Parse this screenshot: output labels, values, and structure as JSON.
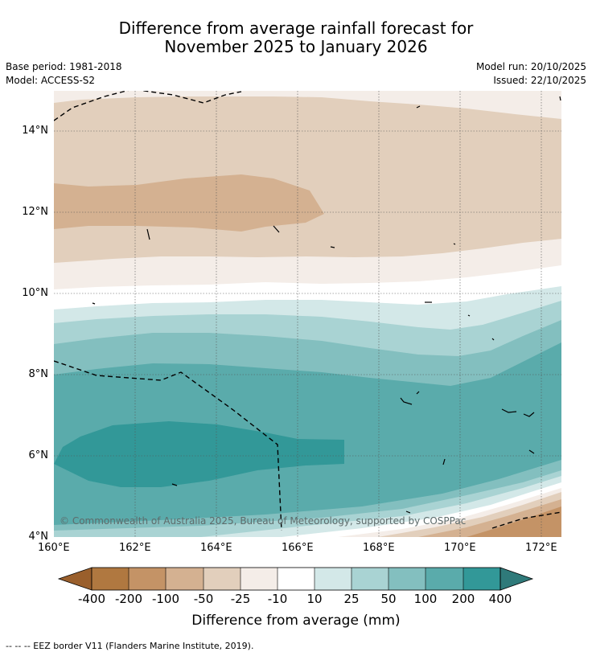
{
  "title": {
    "line1": "Difference from average rainfall forecast for",
    "line2": "November 2025 to January 2026"
  },
  "meta": {
    "base_period": "Base period: 1981-2018",
    "model": "Model: ACCESS-S2",
    "model_run": "Model run: 20/10/2025",
    "issued": "Issued: 22/10/2025"
  },
  "map": {
    "x_ticks": [
      "160°E",
      "162°E",
      "164°E",
      "166°E",
      "168°E",
      "170°E",
      "172°E"
    ],
    "y_ticks": [
      "14°N",
      "12°N",
      "10°N",
      "8°N",
      "6°N",
      "4°N"
    ],
    "copyright": "© Commonwealth of Australia 2025, Bureau of Meteorology, supported by COSPPac"
  },
  "colorbar": {
    "labels": [
      "-400",
      "-200",
      "-100",
      "-50",
      "-25",
      "-10",
      "10",
      "25",
      "50",
      "100",
      "200",
      "400"
    ],
    "colors": [
      "#9a5f2c",
      "#b07840",
      "#c49366",
      "#d4b191",
      "#e2cfbc",
      "#f4ede8",
      "#ffffff",
      "#d3e8e8",
      "#a9d3d3",
      "#83bfbf",
      "#5aabab",
      "#329898",
      "#2f7a7a"
    ],
    "title": "Difference from average (mm)"
  },
  "footnote": "--  --  -- EEZ border V11 (Flanders Marine Institute, 2019)."
}
